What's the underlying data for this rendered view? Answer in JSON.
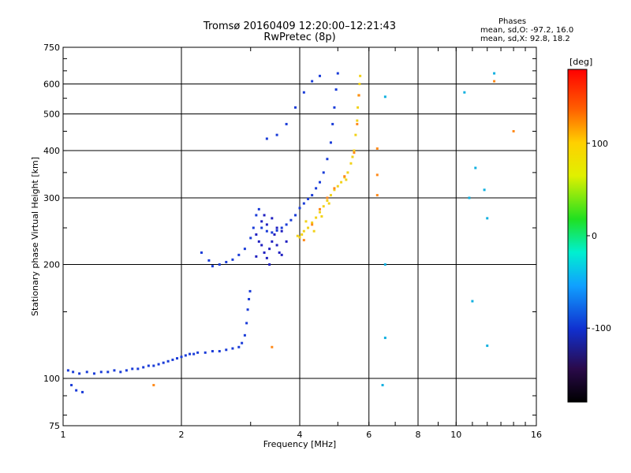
{
  "chart_data": {
    "type": "scatter",
    "title": "Tromsø 20160409 12:20:00–12:21:43",
    "subtitle": "RwPretec (8p)",
    "xlabel": "Frequency [MHz]",
    "ylabel": "Stationary phase Virtual Height [km]",
    "xscale": "log",
    "yscale": "log",
    "xlim": [
      1,
      16
    ],
    "ylim": [
      75,
      750
    ],
    "x_ticks": [
      1,
      2,
      4,
      6,
      8,
      10,
      16
    ],
    "y_ticks": [
      75,
      100,
      200,
      300,
      400,
      500,
      600,
      750
    ],
    "grid": true,
    "phase_info": {
      "header": "Phases",
      "line1": "mean, sd,O: -97.2, 16.0",
      "line2": "mean, sd,X: 92.8, 18.2"
    },
    "colorbar": {
      "label": "[deg]",
      "range": [
        -180,
        180
      ],
      "ticks": [
        -100,
        0,
        100
      ]
    },
    "colors": {
      "o_mode": "#1a3cd8",
      "x_mode": "#f2d21a",
      "x_mode_alt": "#ff8a1a"
    },
    "series": [
      {
        "mode": "O",
        "phase": -97,
        "points": [
          [
            1.03,
            105
          ],
          [
            1.06,
            104
          ],
          [
            1.1,
            103
          ],
          [
            1.15,
            104
          ],
          [
            1.2,
            103
          ],
          [
            1.25,
            104
          ],
          [
            1.3,
            104
          ],
          [
            1.35,
            105
          ],
          [
            1.4,
            104
          ],
          [
            1.45,
            105
          ],
          [
            1.5,
            106
          ],
          [
            1.55,
            106
          ],
          [
            1.6,
            107
          ],
          [
            1.65,
            108
          ],
          [
            1.7,
            108
          ],
          [
            1.75,
            109
          ],
          [
            1.8,
            110
          ],
          [
            1.85,
            111
          ],
          [
            1.9,
            112
          ],
          [
            1.95,
            113
          ],
          [
            2.0,
            114
          ],
          [
            2.05,
            115
          ],
          [
            2.1,
            116
          ],
          [
            2.15,
            116
          ],
          [
            2.2,
            117
          ],
          [
            2.3,
            117
          ],
          [
            2.4,
            118
          ],
          [
            2.5,
            118
          ],
          [
            2.6,
            119
          ],
          [
            2.7,
            120
          ],
          [
            2.8,
            121
          ],
          [
            2.85,
            124
          ],
          [
            2.9,
            130
          ],
          [
            2.93,
            140
          ],
          [
            2.95,
            152
          ],
          [
            2.97,
            162
          ],
          [
            2.99,
            170
          ],
          [
            1.08,
            93
          ],
          [
            1.12,
            92
          ],
          [
            1.05,
            96
          ]
        ]
      },
      {
        "mode": "O",
        "phase": -100,
        "points": [
          [
            2.25,
            215
          ],
          [
            2.35,
            205
          ],
          [
            2.4,
            198
          ],
          [
            2.5,
            200
          ],
          [
            2.6,
            203
          ],
          [
            2.7,
            206
          ],
          [
            2.8,
            212
          ],
          [
            2.9,
            220
          ],
          [
            3.0,
            235
          ],
          [
            3.05,
            250
          ],
          [
            3.1,
            270
          ],
          [
            3.15,
            280
          ],
          [
            3.2,
            250
          ],
          [
            3.3,
            245
          ],
          [
            3.4,
            243
          ],
          [
            3.5,
            246
          ],
          [
            3.6,
            250
          ],
          [
            3.7,
            255
          ],
          [
            3.8,
            262
          ],
          [
            3.9,
            270
          ],
          [
            4.0,
            282
          ],
          [
            4.1,
            290
          ],
          [
            4.2,
            298
          ],
          [
            4.3,
            305
          ],
          [
            4.4,
            318
          ],
          [
            4.5,
            330
          ],
          [
            4.6,
            350
          ],
          [
            4.7,
            380
          ],
          [
            4.8,
            420
          ],
          [
            4.85,
            470
          ],
          [
            4.9,
            520
          ],
          [
            4.95,
            580
          ],
          [
            5.0,
            640
          ],
          [
            3.3,
            430
          ],
          [
            3.5,
            440
          ],
          [
            3.7,
            470
          ],
          [
            3.9,
            520
          ],
          [
            4.1,
            570
          ],
          [
            4.3,
            610
          ],
          [
            4.5,
            630
          ]
        ]
      },
      {
        "mode": "O",
        "phase": -120,
        "points": [
          [
            3.1,
            240
          ],
          [
            3.15,
            230
          ],
          [
            3.2,
            225
          ],
          [
            3.25,
            215
          ],
          [
            3.3,
            208
          ],
          [
            3.35,
            220
          ],
          [
            3.4,
            230
          ],
          [
            3.45,
            240
          ],
          [
            3.5,
            225
          ],
          [
            3.55,
            215
          ],
          [
            3.6,
            212
          ],
          [
            3.2,
            260
          ],
          [
            3.3,
            255
          ],
          [
            3.4,
            265
          ],
          [
            3.1,
            210
          ],
          [
            3.5,
            250
          ],
          [
            3.6,
            245
          ],
          [
            3.7,
            230
          ],
          [
            3.25,
            270
          ],
          [
            3.35,
            200
          ]
        ]
      },
      {
        "mode": "X",
        "phase": 95,
        "points": [
          [
            3.95,
            238
          ],
          [
            4.0,
            236
          ],
          [
            4.05,
            240
          ],
          [
            4.1,
            245
          ],
          [
            4.2,
            250
          ],
          [
            4.3,
            258
          ],
          [
            4.4,
            266
          ],
          [
            4.5,
            275
          ],
          [
            4.6,
            285
          ],
          [
            4.7,
            295
          ],
          [
            4.8,
            305
          ],
          [
            4.9,
            315
          ],
          [
            5.0,
            322
          ],
          [
            5.1,
            330
          ],
          [
            5.2,
            340
          ],
          [
            5.3,
            350
          ],
          [
            5.4,
            370
          ],
          [
            5.5,
            400
          ],
          [
            5.55,
            440
          ],
          [
            5.6,
            480
          ],
          [
            5.62,
            520
          ],
          [
            5.65,
            560
          ],
          [
            5.68,
            600
          ],
          [
            5.7,
            630
          ],
          [
            4.15,
            260
          ],
          [
            4.35,
            245
          ],
          [
            4.55,
            268
          ],
          [
            4.75,
            290
          ],
          [
            5.25,
            335
          ],
          [
            5.45,
            385
          ]
        ]
      },
      {
        "mode": "X",
        "phase": 140,
        "points": [
          [
            4.1,
            232
          ],
          [
            4.3,
            255
          ],
          [
            4.5,
            280
          ],
          [
            4.7,
            300
          ],
          [
            4.9,
            318
          ],
          [
            5.2,
            342
          ],
          [
            5.5,
            395
          ],
          [
            5.6,
            470
          ],
          [
            5.66,
            560
          ],
          [
            1.7,
            96
          ],
          [
            3.4,
            121
          ],
          [
            6.3,
            405
          ],
          [
            6.3,
            345
          ],
          [
            6.3,
            305
          ],
          [
            12.5,
            610
          ],
          [
            14.0,
            450
          ]
        ]
      },
      {
        "mode": "noise",
        "phase": -40,
        "points": [
          [
            6.6,
            555
          ],
          [
            6.6,
            200
          ],
          [
            6.6,
            128
          ],
          [
            6.5,
            96
          ],
          [
            10.5,
            570
          ],
          [
            11.2,
            360
          ],
          [
            11.8,
            315
          ],
          [
            12.0,
            265
          ],
          [
            11.0,
            160
          ],
          [
            12.5,
            640
          ],
          [
            10.8,
            300
          ],
          [
            12.0,
            122
          ]
        ]
      }
    ]
  }
}
